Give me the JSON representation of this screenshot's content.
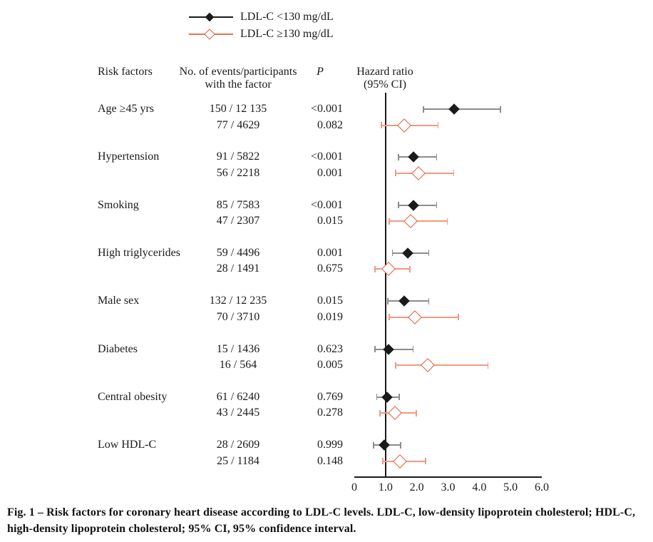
{
  "legend": {
    "items": [
      {
        "label": "LDL-C <130 mg/dL",
        "marker": "filled-diamond"
      },
      {
        "label": "LDL-C ≥130 mg/dL",
        "marker": "open-diamond"
      }
    ]
  },
  "columns": {
    "risk_factors": "Risk factors",
    "events_line1": "No. of events/participants",
    "events_line2": "with the factor",
    "p": "P",
    "hr_line1": "Hazard ratio",
    "hr_line2": "(95% CI)"
  },
  "colors": {
    "series1_marker": "#1a1a1a",
    "series1_ci": "#8c8c8c",
    "series2_marker": "#e25a35",
    "series2_ci": "#f09a81",
    "series2_legend_line": "#e8714f",
    "axis": "#1a1a1a",
    "text": "#1a1a1a"
  },
  "chart_data": {
    "type": "forest",
    "title": "Risk factors for coronary heart disease according to LDL-C levels",
    "xlabel": "Hazard ratio (95% CI)",
    "axis": {
      "min": 0,
      "max": 6,
      "tick_labels": [
        "0",
        "1.0",
        "2.0",
        "3.0",
        "4.0",
        "5.0",
        "6.0"
      ],
      "tick_values": [
        0,
        1,
        2,
        3,
        4,
        5,
        6
      ],
      "reference_line": 1.0,
      "grid": false
    },
    "series_names": [
      "LDL-C <130 mg/dL",
      "LDL-C ≥130 mg/dL"
    ],
    "groups": [
      {
        "risk_factor": "Age ≥45 yrs",
        "rows": [
          {
            "series": "LDL-C <130 mg/dL",
            "events": "150 / 12 135",
            "p": "<0.001",
            "hr": 3.2,
            "ci_low": 2.2,
            "ci_high": 4.7
          },
          {
            "series": "LDL-C ≥130 mg/dL",
            "events": "77 / 4629",
            "p": "0.082",
            "hr": 1.6,
            "ci_low": 0.85,
            "ci_high": 2.7
          }
        ]
      },
      {
        "risk_factor": "Hypertension",
        "rows": [
          {
            "series": "LDL-C <130 mg/dL",
            "events": "91 / 5822",
            "p": "<0.001",
            "hr": 1.9,
            "ci_low": 1.4,
            "ci_high": 2.65
          },
          {
            "series": "LDL-C ≥130 mg/dL",
            "events": "56 / 2218",
            "p": "0.001",
            "hr": 2.05,
            "ci_low": 1.3,
            "ci_high": 3.2
          }
        ]
      },
      {
        "risk_factor": "Smoking",
        "rows": [
          {
            "series": "LDL-C <130 mg/dL",
            "events": "85 / 7583",
            "p": "<0.001",
            "hr": 1.9,
            "ci_low": 1.4,
            "ci_high": 2.65
          },
          {
            "series": "LDL-C ≥130 mg/dL",
            "events": "47 / 2307",
            "p": "0.015",
            "hr": 1.8,
            "ci_low": 1.1,
            "ci_high": 3.0
          }
        ]
      },
      {
        "risk_factor": "High triglycerides",
        "rows": [
          {
            "series": "LDL-C <130 mg/dL",
            "events": "59 / 4496",
            "p": "0.001",
            "hr": 1.7,
            "ci_low": 1.2,
            "ci_high": 2.4
          },
          {
            "series": "LDL-C ≥130 mg/dL",
            "events": "28 / 1491",
            "p": "0.675",
            "hr": 1.1,
            "ci_low": 0.65,
            "ci_high": 1.8
          }
        ]
      },
      {
        "risk_factor": "Male sex",
        "rows": [
          {
            "series": "LDL-C <130 mg/dL",
            "events": "132 / 12 235",
            "p": "0.015",
            "hr": 1.6,
            "ci_low": 1.05,
            "ci_high": 2.4
          },
          {
            "series": "LDL-C ≥130 mg/dL",
            "events": "70 / 3710",
            "p": "0.019",
            "hr": 1.95,
            "ci_low": 1.1,
            "ci_high": 3.35
          }
        ]
      },
      {
        "risk_factor": "Diabetes",
        "rows": [
          {
            "series": "LDL-C <130 mg/dL",
            "events": "15 / 1436",
            "p": "0.623",
            "hr": 1.1,
            "ci_low": 0.65,
            "ci_high": 1.9
          },
          {
            "series": "LDL-C ≥130 mg/dL",
            "events": "16 / 564",
            "p": "0.005",
            "hr": 2.35,
            "ci_low": 1.3,
            "ci_high": 4.3
          }
        ]
      },
      {
        "risk_factor": "Central obesity",
        "rows": [
          {
            "series": "LDL-C <130 mg/dL",
            "events": "61 / 6240",
            "p": "0.769",
            "hr": 1.05,
            "ci_low": 0.7,
            "ci_high": 1.45
          },
          {
            "series": "LDL-C ≥130 mg/dL",
            "events": "43 / 2445",
            "p": "0.278",
            "hr": 1.3,
            "ci_low": 0.8,
            "ci_high": 2.0
          }
        ]
      },
      {
        "risk_factor": "Low HDL-C",
        "rows": [
          {
            "series": "LDL-C <130 mg/dL",
            "events": "28 / 2609",
            "p": "0.999",
            "hr": 0.95,
            "ci_low": 0.6,
            "ci_high": 1.5
          },
          {
            "series": "LDL-C ≥130 mg/dL",
            "events": "25 / 1184",
            "p": "0.148",
            "hr": 1.45,
            "ci_low": 0.9,
            "ci_high": 2.3
          }
        ]
      }
    ]
  },
  "caption": "Fig. 1 – Risk factors for coronary heart disease according to LDL-C levels. LDL-C, low-density lipoprotein cholesterol; HDL-C, high-density lipoprotein cholesterol; 95% CI, 95% confidence interval."
}
